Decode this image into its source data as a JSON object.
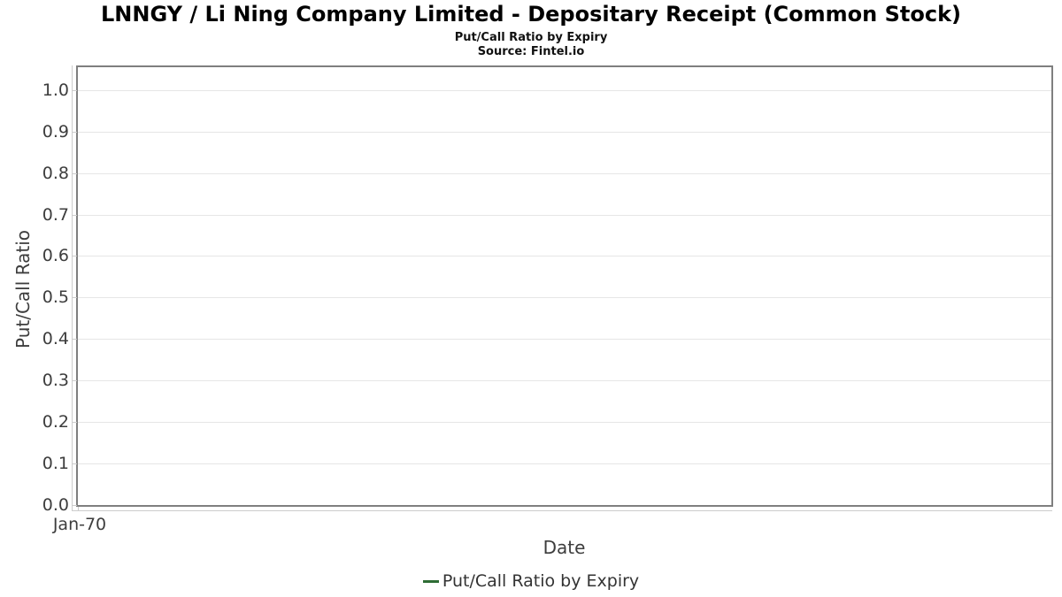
{
  "header": {
    "title": "LNNGY / Li Ning Company Limited - Depositary Receipt (Common Stock)",
    "subtitle": "Put/Call Ratio by Expiry",
    "source": "Source: Fintel.io"
  },
  "chart_data": {
    "type": "line",
    "title": "LNNGY / Li Ning Company Limited - Depositary Receipt (Common Stock)",
    "subtitle": "Put/Call Ratio by Expiry",
    "source": "Source: Fintel.io",
    "xlabel": "Date",
    "ylabel": "Put/Call Ratio",
    "x_tick_labels": [
      "Jan-70"
    ],
    "y_tick_labels": [
      "0.0",
      "0.1",
      "0.2",
      "0.3",
      "0.4",
      "0.5",
      "0.6",
      "0.7",
      "0.8",
      "0.9",
      "1.0"
    ],
    "y_tick_values": [
      0.0,
      0.1,
      0.2,
      0.3,
      0.4,
      0.5,
      0.6,
      0.7,
      0.8,
      0.9,
      1.0
    ],
    "ylim": [
      0,
      1.055
    ],
    "grid": true,
    "legend_position": "bottom",
    "series": [
      {
        "name": "Put/Call Ratio by Expiry",
        "color": "#2e6c34",
        "x": [],
        "values": []
      }
    ]
  },
  "legend": {
    "items": [
      {
        "label": "Put/Call Ratio by Expiry",
        "color": "#2e6c34",
        "marker": "dash"
      }
    ]
  },
  "colors": {
    "plot_border": "#7f7f7f",
    "gridline": "#e6e6e6",
    "axis_line": "#cccccc",
    "tick_label": "#3d3d3d",
    "series_green": "#2e6c34"
  }
}
